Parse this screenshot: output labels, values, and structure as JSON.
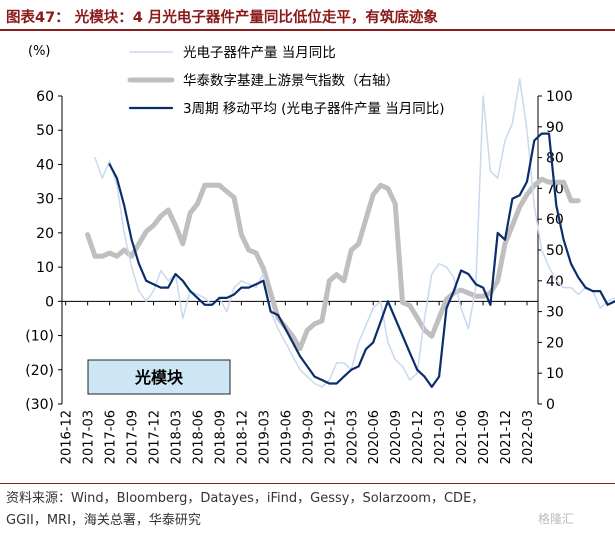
{
  "header": {
    "title": "图表47： 光模块：4 月光电子器件产量同比低位走平，有筑底迹象"
  },
  "footer": {
    "source_line1": "资料来源：Wind，Bloomberg，Datayes，iFind，Gessy，Solarzoom，CDE，",
    "source_line2": "GGII，MRI，海关总署，华泰研究"
  },
  "watermark": {
    "text": "格隆汇"
  },
  "chart_data": {
    "type": "line",
    "unit_label": "(%)",
    "label_box": "光模块",
    "label_box_fill": "#cce6f6",
    "left_axis": {
      "ylim": [
        -30,
        60
      ],
      "ticks": [
        "60",
        "50",
        "40",
        "30",
        "20",
        "10",
        "0",
        "(10)",
        "(20)",
        "(30)"
      ]
    },
    "right_axis": {
      "ylim": [
        0,
        100
      ],
      "ticks": [
        "100",
        "90",
        "80",
        "70",
        "60",
        "50",
        "40",
        "30",
        "20",
        "10",
        "0"
      ]
    },
    "x_ticks": [
      "2016-12",
      "2017-03",
      "2017-06",
      "2017-09",
      "2017-12",
      "2018-03",
      "2018-06",
      "2018-09",
      "2018-12",
      "2019-03",
      "2019-06",
      "2019-09",
      "2019-12",
      "2020-03",
      "2020-06",
      "2020-09",
      "2020-12",
      "2021-03",
      "2021-06",
      "2021-09",
      "2021-12",
      "2022-03"
    ],
    "x_start": "2016-12",
    "series": [
      {
        "name": "光电子器件产量 当月同比",
        "axis": "left",
        "color": "#c9d9ee",
        "width": 1.5,
        "start": "2017-04",
        "values": [
          42,
          36,
          41,
          34,
          20,
          10,
          3,
          0,
          3,
          9,
          6,
          8,
          -5,
          3,
          2,
          1,
          -1,
          1,
          -3,
          4,
          6,
          5,
          4,
          8,
          -3,
          -8,
          -12,
          -16,
          -20,
          -22,
          -24,
          -25,
          -23,
          -18,
          -18,
          -20,
          -12,
          -7,
          -2,
          0,
          -12,
          -17,
          -19,
          -23,
          -21,
          -5,
          8,
          11,
          10,
          7,
          -2,
          -8,
          4,
          60,
          38,
          36,
          47,
          52,
          65,
          50,
          28,
          15,
          10,
          6,
          4,
          4,
          2,
          4,
          3,
          -2,
          0,
          1
        ]
      },
      {
        "name": "华泰数字基建上游景气指数（右轴）",
        "axis": "right",
        "color": "#bfbfbf",
        "width": 5,
        "start": "2017-03",
        "values": [
          55,
          48,
          48,
          49,
          48,
          50,
          48,
          52,
          56,
          58,
          61,
          63,
          58,
          52,
          62,
          65,
          71,
          71,
          71,
          69,
          67,
          55,
          50,
          49,
          44,
          36,
          28,
          25,
          22,
          18,
          24,
          26,
          27,
          40,
          42,
          40,
          50,
          52,
          60,
          68,
          71,
          70,
          65,
          33,
          32,
          28,
          24,
          22,
          28,
          34,
          36,
          37,
          36,
          35,
          35,
          36,
          40,
          52,
          58,
          64,
          68,
          71,
          73,
          72,
          72,
          72,
          66,
          66
        ]
      },
      {
        "name": "3周期 移动平均 (光电子器件产量 当月同比)",
        "axis": "left",
        "color": "#0b2d6b",
        "width": 2.2,
        "start": "2017-06",
        "values": [
          40,
          36,
          28,
          18,
          11,
          6,
          5,
          4,
          4,
          8,
          6,
          3,
          1,
          -1,
          -1,
          1,
          1,
          2,
          4,
          4,
          5,
          6,
          -3,
          -4,
          -8,
          -12,
          -16,
          -19,
          -22,
          -23,
          -24,
          -24,
          -22,
          -20,
          -19,
          -14,
          -12,
          -6,
          0,
          -5,
          -10,
          -15,
          -20,
          -22,
          -25,
          -22,
          -2,
          3,
          9,
          8,
          5,
          4,
          -1,
          20,
          18,
          30,
          31,
          35,
          47,
          49,
          49,
          28,
          18,
          11,
          7,
          4,
          3,
          3,
          -1,
          0,
          -2,
          -2,
          -2
        ]
      }
    ]
  }
}
